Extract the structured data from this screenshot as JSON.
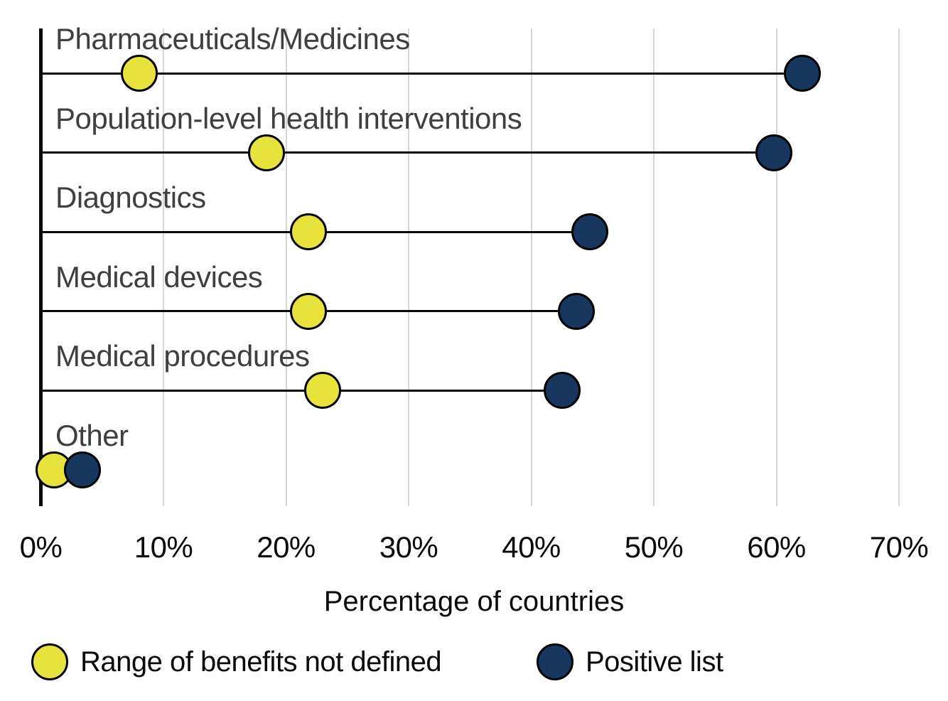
{
  "chart_data": {
    "type": "dumbbell",
    "orientation": "horizontal",
    "categories": [
      "Pharmaceuticals/Medicines",
      "Population-level health interventions",
      "Diagnostics",
      "Medical devices",
      "Medical procedures",
      "Other"
    ],
    "series": [
      {
        "name": "Range of benefits not defined",
        "color": "#e8e33c",
        "values": [
          8.0,
          18.4,
          21.8,
          21.8,
          23.0,
          1.1
        ]
      },
      {
        "name": "Positive list",
        "color": "#17375e",
        "values": [
          62.1,
          59.8,
          44.8,
          43.7,
          42.5,
          3.4
        ]
      }
    ],
    "xlabel": "Percentage of countries",
    "x_ticks": [
      "0%",
      "10%",
      "20%",
      "30%",
      "40%",
      "50%",
      "60%",
      "70%"
    ],
    "xlim": [
      0,
      70
    ],
    "grid": "vertical",
    "gridline_color": "#d6d6d6",
    "axis_color": "#0a0a0a",
    "category_label_color": "#3f3f3f",
    "legend_position": "bottom",
    "marker_outline_color": "#000000"
  }
}
